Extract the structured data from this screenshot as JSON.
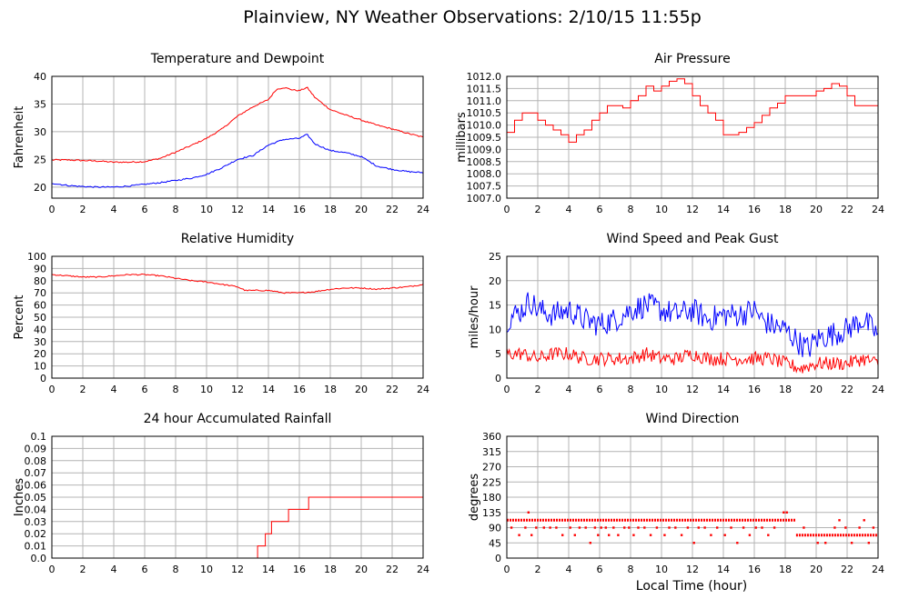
{
  "page": {
    "title": "Plainview, NY Weather Observations: 2/10/15 11:55p",
    "xlabel": "Local Time (hour)"
  },
  "colors": {
    "primary": "#ff0000",
    "secondary": "#0000ff",
    "grid": "#b4b4b4",
    "frame": "#000000"
  },
  "chart_data": [
    {
      "id": "temp",
      "type": "line",
      "title": "Temperature and Dewpoint",
      "ylabel": "Fahrenheit",
      "xlabel": "",
      "xlim": [
        0,
        24
      ],
      "ylim": [
        18,
        40
      ],
      "xticks": [
        0,
        2,
        4,
        6,
        8,
        10,
        12,
        14,
        16,
        18,
        20,
        22,
        24
      ],
      "yticks": [
        20,
        25,
        30,
        35,
        40
      ],
      "ytick_labels": [
        "20",
        "25",
        "30",
        "35",
        "40"
      ],
      "grid": true,
      "noise": 0.12,
      "series": [
        {
          "color": "#ff0000",
          "x": [
            0,
            1,
            2,
            3,
            4,
            5,
            6,
            7,
            8,
            9,
            10,
            11,
            12,
            13,
            14,
            14.5,
            15,
            15.5,
            16,
            16.5,
            17,
            18,
            19,
            20,
            21,
            22,
            23,
            24
          ],
          "y": [
            24.9,
            24.9,
            24.8,
            24.7,
            24.5,
            24.5,
            24.6,
            25.2,
            26.3,
            27.5,
            28.8,
            30.5,
            32.8,
            34.5,
            35.8,
            37.6,
            38.0,
            37.6,
            37.4,
            38.0,
            36.2,
            34.0,
            33.0,
            32.1,
            31.2,
            30.5,
            29.7,
            29.0
          ]
        },
        {
          "color": "#0000ff",
          "x": [
            0,
            1,
            2,
            3,
            4,
            5,
            6,
            7,
            8,
            9,
            10,
            11,
            12,
            13,
            14,
            15,
            16,
            16.5,
            17,
            18,
            19,
            20,
            21,
            22,
            23,
            24
          ],
          "y": [
            20.7,
            20.3,
            20.1,
            20.0,
            20.0,
            20.2,
            20.5,
            20.8,
            21.2,
            21.6,
            22.3,
            23.5,
            25.0,
            25.7,
            27.6,
            28.6,
            28.8,
            29.5,
            27.8,
            26.6,
            26.2,
            25.5,
            23.8,
            23.2,
            22.8,
            22.6
          ]
        }
      ]
    },
    {
      "id": "pressure",
      "type": "line",
      "title": "Air Pressure",
      "ylabel": "millibars",
      "xlabel": "",
      "xlim": [
        0,
        24
      ],
      "ylim": [
        1007.0,
        1012.0
      ],
      "xticks": [
        0,
        2,
        4,
        6,
        8,
        10,
        12,
        14,
        16,
        18,
        20,
        22,
        24
      ],
      "yticks": [
        1007.0,
        1007.5,
        1008.0,
        1008.5,
        1009.0,
        1009.5,
        1010.0,
        1010.5,
        1011.0,
        1011.5,
        1012.0
      ],
      "ytick_labels": [
        "1007.0",
        "1007.5",
        "1008.0",
        "1008.5",
        "1009.0",
        "1009.5",
        "1010.0",
        "1010.5",
        "1011.0",
        "1011.5",
        "1012.0"
      ],
      "grid": true,
      "noise": 0.0,
      "series": [
        {
          "color": "#ff0000",
          "x": [
            0,
            0.5,
            1,
            1.5,
            2,
            2.5,
            3,
            3.5,
            4,
            4.5,
            5,
            5.5,
            6,
            6.5,
            7,
            7.5,
            8,
            8.5,
            9,
            9.5,
            10,
            10.5,
            11,
            11.5,
            12,
            12.5,
            13,
            13.5,
            14,
            14.5,
            15,
            15.5,
            16,
            16.5,
            17,
            17.5,
            18,
            18.5,
            19,
            19.5,
            20,
            20.5,
            21,
            21.5,
            22,
            22.5,
            23,
            23.5,
            24
          ],
          "y": [
            1009.7,
            1010.2,
            1010.5,
            1010.5,
            1010.2,
            1010.0,
            1009.8,
            1009.6,
            1009.3,
            1009.6,
            1009.8,
            1010.2,
            1010.5,
            1010.8,
            1010.8,
            1010.7,
            1011.0,
            1011.2,
            1011.6,
            1011.4,
            1011.6,
            1011.8,
            1011.9,
            1011.7,
            1011.2,
            1010.8,
            1010.5,
            1010.2,
            1009.6,
            1009.6,
            1009.7,
            1009.9,
            1010.1,
            1010.4,
            1010.7,
            1010.9,
            1011.2,
            1011.2,
            1011.2,
            1011.2,
            1011.4,
            1011.5,
            1011.7,
            1011.6,
            1011.2,
            1010.8,
            1010.8,
            1010.8,
            1010.9
          ]
        }
      ]
    },
    {
      "id": "humidity",
      "type": "line",
      "title": "Relative Humidity",
      "ylabel": "Percent",
      "xlabel": "",
      "xlim": [
        0,
        24
      ],
      "ylim": [
        0,
        100
      ],
      "xticks": [
        0,
        2,
        4,
        6,
        8,
        10,
        12,
        14,
        16,
        18,
        20,
        22,
        24
      ],
      "yticks": [
        0,
        10,
        20,
        30,
        40,
        50,
        60,
        70,
        80,
        90,
        100
      ],
      "ytick_labels": [
        "0",
        "10",
        "20",
        "30",
        "40",
        "50",
        "60",
        "70",
        "80",
        "90",
        "100"
      ],
      "grid": true,
      "noise": 0.5,
      "series": [
        {
          "color": "#ff0000",
          "x": [
            0,
            1,
            2,
            3,
            4,
            5,
            6,
            7,
            8,
            9,
            10,
            11,
            12,
            12.5,
            13,
            14,
            15,
            16,
            17,
            18,
            19,
            20,
            21,
            22,
            23,
            24
          ],
          "y": [
            85,
            84,
            83,
            83,
            84,
            85,
            85,
            84,
            82,
            80,
            79,
            77,
            75,
            72,
            72,
            72,
            70,
            70,
            71,
            73,
            74,
            74,
            73,
            74,
            75,
            77
          ]
        }
      ]
    },
    {
      "id": "wind",
      "type": "line",
      "title": "Wind Speed and Peak Gust",
      "ylabel": "miles/hour",
      "xlabel": "",
      "xlim": [
        0,
        24
      ],
      "ylim": [
        0,
        25
      ],
      "xticks": [
        0,
        2,
        4,
        6,
        8,
        10,
        12,
        14,
        16,
        18,
        20,
        22,
        24
      ],
      "yticks": [
        0,
        5,
        10,
        15,
        20,
        25
      ],
      "ytick_labels": [
        "0",
        "5",
        "10",
        "15",
        "20",
        "25"
      ],
      "grid": true,
      "noise": 2.6,
      "series": [
        {
          "color": "#0000ff",
          "x": [
            0,
            1,
            1.5,
            2,
            3,
            4,
            5,
            6,
            7,
            8,
            9,
            10,
            11,
            12,
            13,
            14,
            15,
            16,
            16.5,
            17,
            18,
            19,
            19.5,
            20,
            21,
            22,
            23,
            24
          ],
          "y": [
            12,
            14,
            16,
            14,
            13,
            14,
            12,
            11,
            12,
            14,
            15,
            14,
            13,
            14,
            12,
            13,
            13,
            14,
            12,
            11,
            10,
            7,
            6,
            8,
            9,
            10,
            12,
            9
          ]
        },
        {
          "color": "#ff0000",
          "x": [
            0,
            1,
            2,
            3,
            4,
            5,
            6,
            7,
            8,
            9,
            10,
            11,
            12,
            13,
            14,
            15,
            16,
            17,
            18,
            19,
            20,
            21,
            22,
            23,
            24
          ],
          "y": [
            5,
            5,
            4,
            5,
            5,
            4,
            4,
            4,
            4,
            5,
            4,
            4,
            5,
            4,
            4,
            4,
            4,
            4,
            3,
            2,
            3,
            3,
            3,
            4,
            3
          ]
        }
      ]
    },
    {
      "id": "rain",
      "type": "line",
      "title": "24 hour Accumulated Rainfall",
      "ylabel": "Inches",
      "xlabel": "",
      "xlim": [
        0,
        24
      ],
      "ylim": [
        0,
        0.1
      ],
      "xticks": [
        0,
        2,
        4,
        6,
        8,
        10,
        12,
        14,
        16,
        18,
        20,
        22,
        24
      ],
      "yticks": [
        0,
        0.01,
        0.02,
        0.03,
        0.04,
        0.05,
        0.06,
        0.07,
        0.08,
        0.09,
        0.1
      ],
      "ytick_labels": [
        "0.0",
        "0.01",
        "0.02",
        "0.03",
        "0.04",
        "0.05",
        "0.06",
        "0.07",
        "0.08",
        "0.09",
        "0.1"
      ],
      "grid": true,
      "noise": 0.0,
      "series": [
        {
          "color": "#ff0000",
          "x": [
            0,
            13.3,
            13.3,
            13.8,
            13.8,
            14.2,
            14.2,
            14.7,
            14.7,
            15.3,
            15.3,
            15.8,
            15.8,
            16.6,
            16.6,
            24
          ],
          "y": [
            0,
            0,
            0.01,
            0.01,
            0.02,
            0.02,
            0.03,
            0.03,
            0.03,
            0.03,
            0.04,
            0.04,
            0.04,
            0.04,
            0.05,
            0.05
          ]
        }
      ]
    },
    {
      "id": "direction",
      "type": "scatter",
      "title": "Wind Direction",
      "ylabel": "degrees",
      "xlabel": "Local Time (hour)",
      "xlim": [
        0,
        24
      ],
      "ylim": [
        0,
        360
      ],
      "xticks": [
        0,
        2,
        4,
        6,
        8,
        10,
        12,
        14,
        16,
        18,
        20,
        22,
        24
      ],
      "yticks": [
        0,
        45,
        90,
        135,
        180,
        225,
        270,
        315,
        360
      ],
      "ytick_labels": [
        "0",
        "45",
        "90",
        "135",
        "180",
        "225",
        "270",
        "315",
        "360"
      ],
      "grid": true,
      "series": [
        {
          "color": "#ff0000",
          "segments": [
            {
              "x0": 0,
              "x1": 18.7,
              "y": 112
            },
            {
              "x0": 18.7,
              "x1": 24,
              "y": 68
            }
          ],
          "points": [
            [
              0.3,
              90
            ],
            [
              0.8,
              68
            ],
            [
              1.2,
              90
            ],
            [
              1.4,
              135
            ],
            [
              1.6,
              68
            ],
            [
              1.9,
              90
            ],
            [
              2.4,
              90
            ],
            [
              2.8,
              90
            ],
            [
              3.2,
              90
            ],
            [
              3.6,
              68
            ],
            [
              4.1,
              90
            ],
            [
              4.4,
              68
            ],
            [
              4.7,
              90
            ],
            [
              5.1,
              90
            ],
            [
              5.4,
              45
            ],
            [
              5.7,
              90
            ],
            [
              5.9,
              68
            ],
            [
              6.1,
              90
            ],
            [
              6.4,
              90
            ],
            [
              6.6,
              68
            ],
            [
              6.9,
              90
            ],
            [
              7.2,
              68
            ],
            [
              7.6,
              90
            ],
            [
              7.9,
              90
            ],
            [
              8.2,
              68
            ],
            [
              8.5,
              90
            ],
            [
              8.9,
              90
            ],
            [
              9.3,
              68
            ],
            [
              9.7,
              90
            ],
            [
              10.2,
              68
            ],
            [
              10.5,
              90
            ],
            [
              10.9,
              90
            ],
            [
              11.3,
              68
            ],
            [
              11.7,
              90
            ],
            [
              12.1,
              45
            ],
            [
              12.4,
              90
            ],
            [
              12.8,
              90
            ],
            [
              13.2,
              68
            ],
            [
              13.6,
              90
            ],
            [
              14.1,
              68
            ],
            [
              14.5,
              90
            ],
            [
              14.9,
              45
            ],
            [
              15.3,
              90
            ],
            [
              15.7,
              68
            ],
            [
              16.1,
              90
            ],
            [
              16.5,
              90
            ],
            [
              16.9,
              68
            ],
            [
              17.3,
              90
            ],
            [
              17.9,
              135
            ],
            [
              18.1,
              135
            ],
            [
              19.2,
              90
            ],
            [
              20.1,
              45
            ],
            [
              20.6,
              45
            ],
            [
              21.2,
              90
            ],
            [
              21.5,
              112
            ],
            [
              21.9,
              90
            ],
            [
              22.3,
              45
            ],
            [
              22.8,
              90
            ],
            [
              23.1,
              112
            ],
            [
              23.4,
              45
            ],
            [
              23.7,
              90
            ]
          ]
        }
      ]
    }
  ]
}
